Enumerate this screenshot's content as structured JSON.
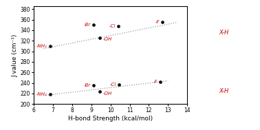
{
  "chart_data": {
    "type": "scatter",
    "xlabel": "H-bond Strength (kcal/mol)",
    "ylabel": "J value (cm⁻¹)",
    "xlim": [
      6,
      14
    ],
    "ylim": [
      200,
      385
    ],
    "xticks": [
      6,
      7,
      8,
      9,
      10,
      11,
      12,
      13,
      14
    ],
    "yticks": [
      200,
      220,
      240,
      260,
      280,
      300,
      320,
      340,
      360,
      380
    ],
    "series": [
      {
        "color": "#111111",
        "x": [
          6.85,
          9.1,
          9.45,
          10.4,
          12.7
        ],
        "values": [
          310,
          350,
          326,
          348,
          355
        ],
        "labels": [
          "-NH₂",
          "-Br",
          "-OH",
          "-Cl",
          "-F"
        ],
        "label_color": "#cc0000",
        "trendline": {
          "x": [
            6.5,
            13.5
          ],
          "y": [
            305,
            355
          ],
          "color": "#999999",
          "line_style": "dotted"
        }
      },
      {
        "color": "#111111",
        "x": [
          6.85,
          9.1,
          9.45,
          10.45,
          12.6
        ],
        "values": [
          219,
          235,
          224,
          237,
          242
        ],
        "labels": [
          "-NH₂",
          "-Br",
          "-OH",
          "-Cl",
          "-F"
        ],
        "label_color": "#cc0000",
        "trendline": {
          "x": [
            6.5,
            13.0
          ],
          "y": [
            216,
            244
          ],
          "color": "#999999",
          "line_style": "dotted"
        }
      }
    ],
    "annotations": [
      {
        "text": "X-H",
        "color": "#cc0000"
      },
      {
        "text": "X-H",
        "color": "#cc0000"
      }
    ]
  }
}
